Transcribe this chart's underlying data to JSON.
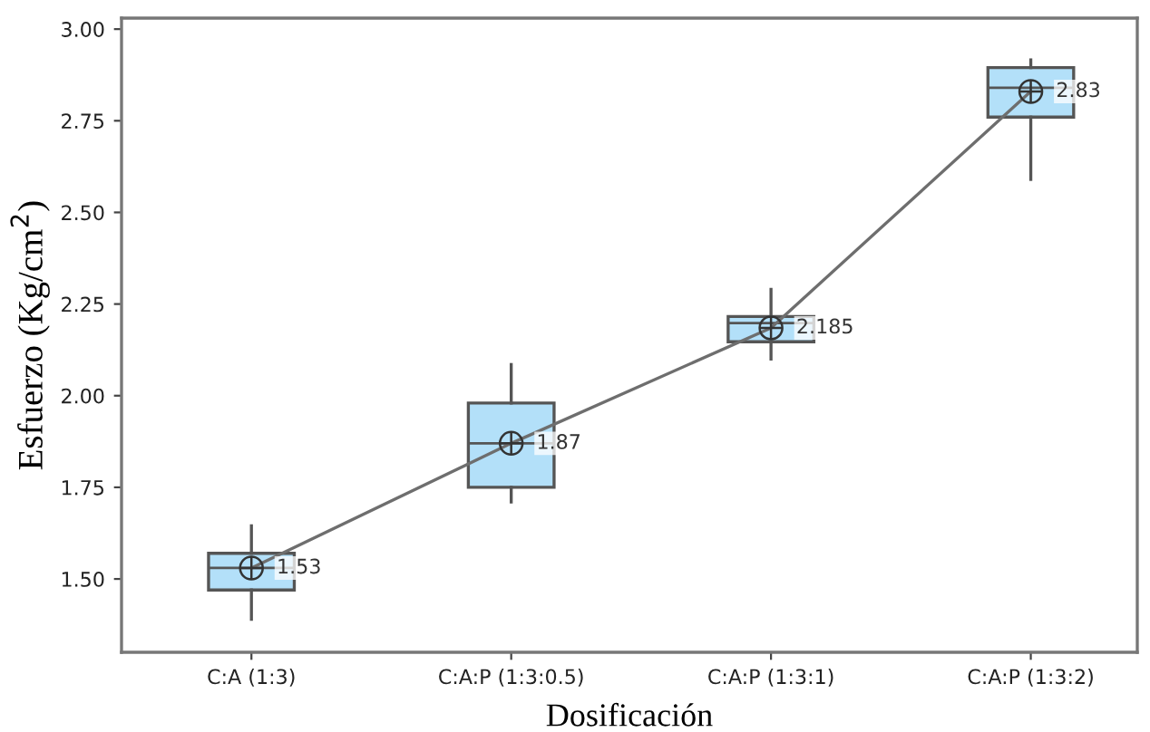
{
  "chart_data": {
    "type": "box",
    "xlabel": "Dosificación",
    "ylabel": "Esfuerzo (Kg/cm$^{2}$)",
    "categories": [
      "C:A (1:3)",
      "C:A:P (1:3:0.5)",
      "C:A:P (1:3:1)",
      "C:A:P (1:3:2)"
    ],
    "ylim": [
      1.3,
      3.03
    ],
    "yticks": [
      {
        "value": 1.5,
        "label": "1.50"
      },
      {
        "value": 1.75,
        "label": "1.75"
      },
      {
        "value": 2.0,
        "label": "2.00"
      },
      {
        "value": 2.25,
        "label": "2.25"
      },
      {
        "value": 2.5,
        "label": "2.50"
      },
      {
        "value": 2.75,
        "label": "2.75"
      },
      {
        "value": 3.0,
        "label": "3.00"
      }
    ],
    "grid": false,
    "legend": false,
    "series": [
      {
        "color": "#b3e0f9",
        "boxes": [
          {
            "low": 1.39,
            "q1": 1.47,
            "median": 1.53,
            "q3": 1.57,
            "high": 1.645,
            "mean": 1.53
          },
          {
            "low": 1.71,
            "q1": 1.75,
            "median": 1.87,
            "q3": 1.98,
            "high": 2.085,
            "mean": 1.87
          },
          {
            "low": 2.1,
            "q1": 2.147,
            "median": 2.198,
            "q3": 2.216,
            "high": 2.29,
            "mean": 2.185
          },
          {
            "low": 2.59,
            "q1": 2.76,
            "median": 2.84,
            "q3": 2.895,
            "high": 2.916,
            "mean": 2.83
          }
        ]
      },
      {
        "type": "line",
        "color": "#6e6e6e",
        "marker": "none",
        "values": [
          1.53,
          1.87,
          2.185,
          2.83
        ],
        "value_labels": [
          "1.53",
          "1.87",
          "2.185",
          "2.83"
        ]
      }
    ]
  }
}
